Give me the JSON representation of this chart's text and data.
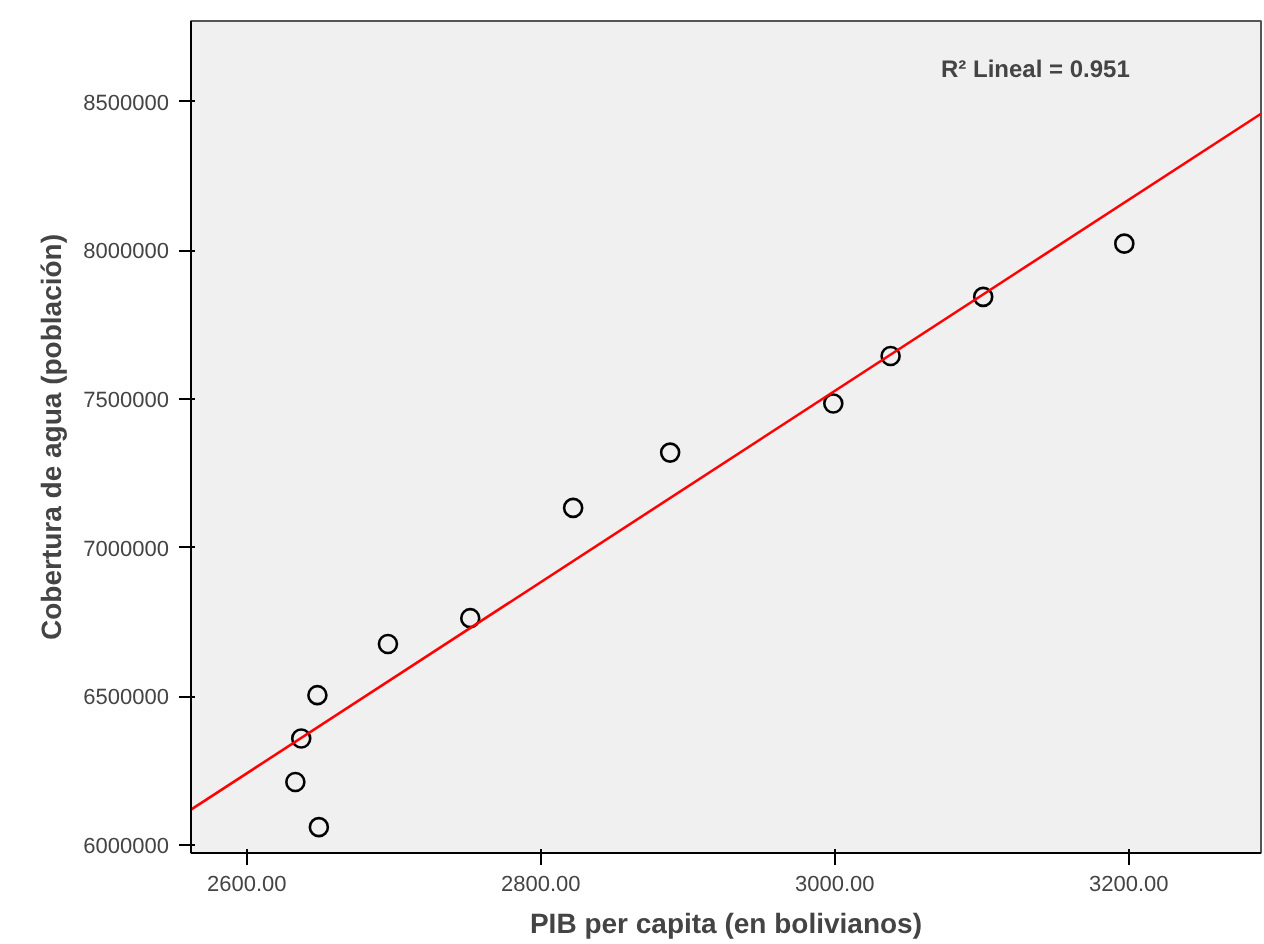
{
  "chart_data": {
    "type": "scatter",
    "xlabel": "PIB per capita (en bolivianos)",
    "ylabel": "Cobertura de agua (población)",
    "annotations": [
      "R² Lineal = 0.951"
    ],
    "xlim": [
      2562,
      3290
    ],
    "ylim": [
      5973000,
      8772000
    ],
    "xticks": [
      {
        "value": 2600,
        "label": "2600.00"
      },
      {
        "value": 2800,
        "label": "2800.00"
      },
      {
        "value": 3000,
        "label": "3000.00"
      },
      {
        "value": 3200,
        "label": "3200.00"
      }
    ],
    "yticks": [
      6000000,
      6500000,
      7000000,
      7500000,
      8000000,
      8500000
    ],
    "grid": false,
    "marker": "circle",
    "series": [
      {
        "color": "#000000",
        "x": [
          2649,
          2633,
          2637,
          2648,
          2696,
          2752,
          2822,
          2888,
          2999,
          3038,
          3101,
          3197
        ],
        "values": [
          6060000,
          6212000,
          6358000,
          6504000,
          6676000,
          6763000,
          7134000,
          7320000,
          7485000,
          7645000,
          7844000,
          8023000
        ]
      },
      {
        "type": "line",
        "marker": "none",
        "color": "#ff0000",
        "x": [
          2562,
          3290
        ],
        "values": [
          6119000,
          8460000
        ]
      }
    ]
  }
}
